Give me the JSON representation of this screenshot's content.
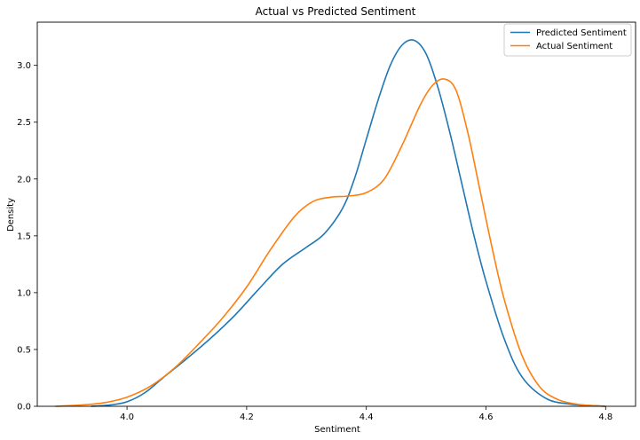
{
  "chart_data": {
    "type": "line",
    "title": "Actual vs Predicted Sentiment",
    "xlabel": "Sentiment",
    "ylabel": "Density",
    "xlim": [
      3.85,
      4.85
    ],
    "ylim": [
      0,
      3.38
    ],
    "xticks": [
      4.0,
      4.2,
      4.4,
      4.6,
      4.8
    ],
    "xtick_labels": [
      "4.0",
      "4.2",
      "4.4",
      "4.6",
      "4.8"
    ],
    "yticks": [
      0.0,
      0.5,
      1.0,
      1.5,
      2.0,
      2.5,
      3.0
    ],
    "ytick_labels": [
      "0.0",
      "0.5",
      "1.0",
      "1.5",
      "2.0",
      "2.5",
      "3.0"
    ],
    "legend_position": "top-right",
    "series": [
      {
        "name": "Predicted Sentiment",
        "color": "#1f77b4",
        "x": [
          3.94,
          3.97,
          4.0,
          4.03,
          4.06,
          4.1,
          4.14,
          4.18,
          4.22,
          4.26,
          4.3,
          4.33,
          4.36,
          4.38,
          4.4,
          4.42,
          4.44,
          4.46,
          4.48,
          4.5,
          4.52,
          4.54,
          4.56,
          4.58,
          4.6,
          4.63,
          4.66,
          4.7,
          4.74,
          4.78,
          4.8
        ],
        "y": [
          0.0,
          0.01,
          0.04,
          0.12,
          0.25,
          0.42,
          0.6,
          0.8,
          1.03,
          1.25,
          1.4,
          1.52,
          1.74,
          2.0,
          2.35,
          2.7,
          3.0,
          3.18,
          3.22,
          3.1,
          2.8,
          2.4,
          1.95,
          1.5,
          1.1,
          0.6,
          0.26,
          0.07,
          0.02,
          0.005,
          0.0
        ]
      },
      {
        "name": "Actual Sentiment",
        "color": "#ff7f0e",
        "x": [
          3.88,
          3.92,
          3.96,
          4.0,
          4.04,
          4.08,
          4.12,
          4.16,
          4.2,
          4.24,
          4.28,
          4.31,
          4.34,
          4.37,
          4.4,
          4.43,
          4.46,
          4.49,
          4.51,
          4.53,
          4.55,
          4.57,
          4.59,
          4.61,
          4.63,
          4.66,
          4.69,
          4.72,
          4.75,
          4.78,
          4.8
        ],
        "y": [
          0.0,
          0.01,
          0.03,
          0.08,
          0.18,
          0.34,
          0.55,
          0.78,
          1.05,
          1.38,
          1.67,
          1.8,
          1.84,
          1.85,
          1.88,
          2.0,
          2.3,
          2.65,
          2.82,
          2.88,
          2.78,
          2.4,
          1.9,
          1.4,
          0.95,
          0.45,
          0.17,
          0.06,
          0.02,
          0.005,
          0.0
        ]
      }
    ]
  }
}
